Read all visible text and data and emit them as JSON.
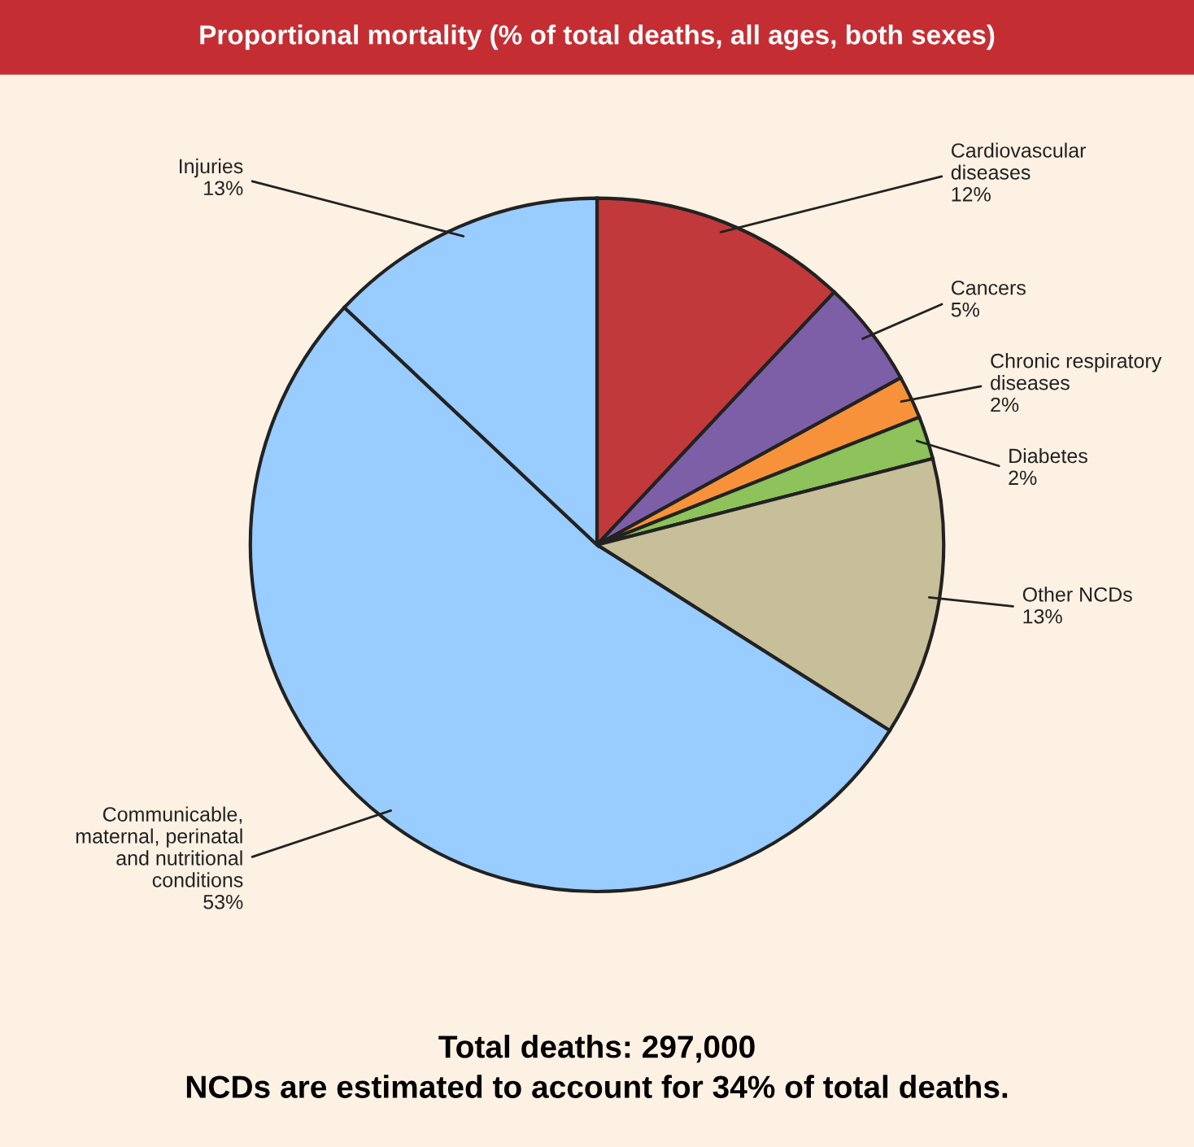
{
  "chart_data": {
    "type": "pie",
    "title": "Proportional mortality (% of total deaths, all ages, both sexes)",
    "categories": [
      "Cardiovascular\ndiseases",
      "Cancers",
      "Chronic respiratory\ndiseases",
      "Diabetes",
      "Other NCDs",
      "Communicable,\nmaternal, perinatal\nand nutritional\nconditions",
      "Injuries"
    ],
    "values": [
      12,
      5,
      2,
      2,
      13,
      53,
      13
    ],
    "value_labels": [
      "12%",
      "5%",
      "2%",
      "2%",
      "13%",
      "53%",
      "13%"
    ],
    "colors": [
      "#c1393a",
      "#7d5fa8",
      "#f7923a",
      "#8dc35a",
      "#c7bf99",
      "#99ccff",
      "#99ccff"
    ],
    "annotations": [
      "Total deaths: 297,000",
      "NCDs are estimated to account for 34% of total deaths."
    ]
  }
}
